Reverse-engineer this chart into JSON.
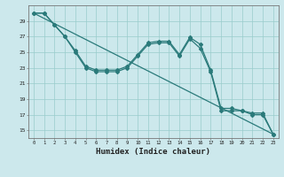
{
  "xlabel": "Humidex (Indice chaleur)",
  "background_color": "#cce8ec",
  "line_color": "#2a7a7a",
  "grid_color": "#99cccc",
  "xlim": [
    -0.5,
    23.5
  ],
  "ylim": [
    14,
    31
  ],
  "yticks": [
    15,
    17,
    19,
    21,
    23,
    25,
    27,
    29
  ],
  "xticks": [
    0,
    1,
    2,
    3,
    4,
    5,
    6,
    7,
    8,
    9,
    10,
    11,
    12,
    13,
    14,
    15,
    16,
    17,
    18,
    19,
    20,
    21,
    22,
    23
  ],
  "series1_x": [
    0,
    1,
    2,
    3,
    4,
    5,
    6,
    7,
    8,
    9,
    10,
    11,
    12,
    13,
    14,
    15,
    16,
    17,
    18,
    19,
    20,
    21,
    22,
    23
  ],
  "series1_y": [
    30,
    30,
    28.5,
    27,
    25,
    23,
    22.5,
    22.5,
    22.5,
    23,
    24.5,
    26,
    26.2,
    26.2,
    24.5,
    26.7,
    25.5,
    22.5,
    17.5,
    17.5,
    17.5,
    17.0,
    17.0,
    14.5
  ],
  "series2_x": [
    0,
    1,
    2,
    3,
    4,
    5,
    6,
    7,
    8,
    9,
    10,
    11,
    12,
    13,
    14,
    15,
    16,
    17,
    18,
    19,
    20,
    21,
    22,
    23
  ],
  "series2_y": [
    30,
    30,
    28.5,
    27,
    25.2,
    23.2,
    22.7,
    22.7,
    22.7,
    23.2,
    24.7,
    26.2,
    26.4,
    26.4,
    24.7,
    26.9,
    26.0,
    22.7,
    17.8,
    17.8,
    17.5,
    17.2,
    17.2,
    14.5
  ],
  "series3_x": [
    0,
    23
  ],
  "series3_y": [
    30,
    14.5
  ]
}
